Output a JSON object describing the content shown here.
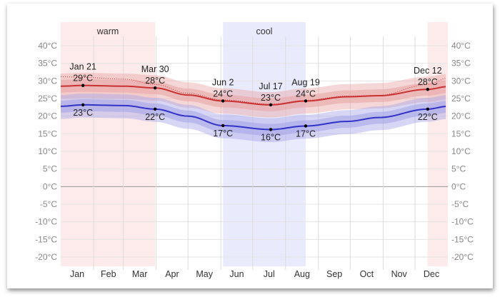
{
  "chart_data": {
    "type": "area",
    "title": "",
    "xlabel": "",
    "ylabel": "",
    "ylim": [
      -20,
      40
    ],
    "y_ticks": [
      "40°C",
      "35°C",
      "30°C",
      "25°C",
      "20°C",
      "15°C",
      "10°C",
      "5°C",
      "0°C",
      "-5°C",
      "-10°C",
      "-15°C",
      "-20°C"
    ],
    "y_tick_values": [
      40,
      35,
      30,
      25,
      20,
      15,
      10,
      5,
      0,
      -5,
      -10,
      -15,
      -20
    ],
    "months": [
      "Jan",
      "Feb",
      "Mar",
      "Apr",
      "May",
      "Jun",
      "Jul",
      "Aug",
      "Sep",
      "Oct",
      "Nov",
      "Dec"
    ],
    "grid": true,
    "seasons": [
      {
        "label": "warm",
        "start_day": 0,
        "end_day": 89,
        "color": "#fdeaea"
      },
      {
        "label": "cool",
        "start_day": 153,
        "end_day": 231,
        "color": "#eaeafd"
      },
      {
        "label": "",
        "start_day": 346,
        "end_day": 365,
        "color": "#fdeaea"
      }
    ],
    "colors": {
      "high": "#c83232",
      "low": "#3232c8",
      "high_band": "#e8a6a6",
      "low_band": "#a6a6e8"
    },
    "days": [
      0,
      21,
      60,
      89,
      120,
      153,
      198,
      231,
      270,
      300,
      346,
      365
    ],
    "series": [
      {
        "key": "high",
        "values": [
          28.5,
          28.7,
          28.5,
          28.0,
          26.0,
          24.3,
          23.2,
          24.3,
          25.5,
          25.8,
          27.6,
          28.4
        ]
      },
      {
        "key": "low",
        "values": [
          22.8,
          23.2,
          23.0,
          22.0,
          20.0,
          17.3,
          16.2,
          17.2,
          18.5,
          19.6,
          22.0,
          22.8
        ]
      }
    ],
    "high_dotted": [
      31.2,
      31.0,
      30.5,
      29.0,
      26.5,
      24.6,
      23.4,
      24.5,
      25.7,
      25.9,
      29.0,
      30.8
    ],
    "annotations": [
      {
        "date": "Jan 21",
        "day": 21,
        "high": "29°C",
        "low": "23°C"
      },
      {
        "date": "Mar 30",
        "day": 89,
        "high": "28°C",
        "low": "22°C"
      },
      {
        "date": "Jun 2",
        "day": 153,
        "high": "24°C",
        "low": "17°C"
      },
      {
        "date": "Jul 17",
        "day": 198,
        "high": "23°C",
        "low": "16°C"
      },
      {
        "date": "Aug 19",
        "day": 231,
        "high": "24°C",
        "low": "17°C"
      },
      {
        "date": "Dec 12",
        "day": 346,
        "high": "28°C",
        "low": "22°C"
      }
    ]
  }
}
